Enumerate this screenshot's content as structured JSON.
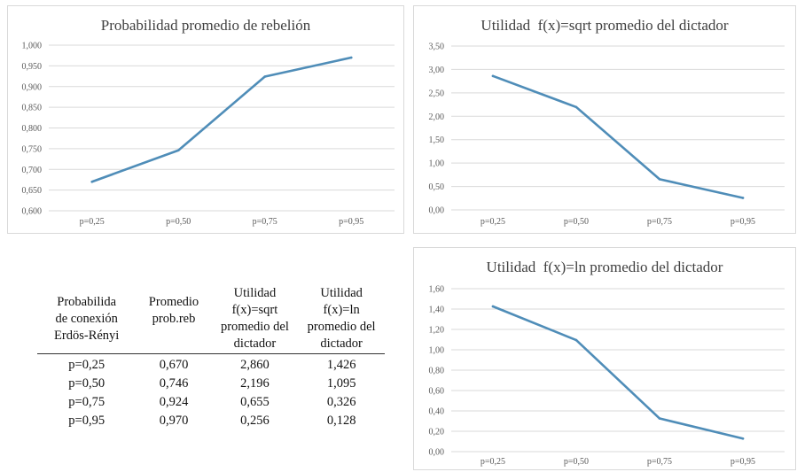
{
  "chart_data": [
    {
      "type": "line",
      "title": "Probabilidad promedio de rebelión",
      "categories": [
        "p=0,25",
        "p=0,50",
        "p=0,75",
        "p=0,95"
      ],
      "series": [
        {
          "values": [
            0.67,
            0.746,
            0.924,
            0.97
          ]
        }
      ],
      "ylim": [
        0.6,
        1.0
      ],
      "yticks": [
        "0,600",
        "0,650",
        "0,700",
        "0,750",
        "0,800",
        "0,850",
        "0,900",
        "0,950",
        "1,000"
      ],
      "grid": true,
      "color": "#4f8db8"
    },
    {
      "type": "line",
      "title": "Utilidad  f(x)=sqrt promedio del dictador",
      "categories": [
        "p=0,25",
        "p=0,50",
        "p=0,75",
        "p=0,95"
      ],
      "series": [
        {
          "values": [
            2.86,
            2.196,
            0.655,
            0.256
          ]
        }
      ],
      "ylim": [
        0,
        3.5
      ],
      "yticks": [
        "0,00",
        "0,50",
        "1,00",
        "1,50",
        "2,00",
        "2,50",
        "3,00",
        "3,50"
      ],
      "grid": true,
      "color": "#4f8db8"
    },
    {
      "type": "line",
      "title": "Utilidad  f(x)=ln promedio del dictador",
      "categories": [
        "p=0,25",
        "p=0,50",
        "p=0,75",
        "p=0,95"
      ],
      "series": [
        {
          "values": [
            1.426,
            1.095,
            0.326,
            0.128
          ]
        }
      ],
      "ylim": [
        0,
        1.6
      ],
      "yticks": [
        "0,00",
        "0,20",
        "0,40",
        "0,60",
        "0,80",
        "1,00",
        "1,20",
        "1,40",
        "1,60"
      ],
      "grid": true,
      "color": "#4f8db8"
    },
    {
      "type": "table",
      "headers": [
        "Probabilida de conexión Erdös-Rényi",
        "Promedio prob.reb",
        "Utilidad f(x)=sqrt promedio del dictador",
        "Utilidad f(x)=ln promedio del dictador"
      ],
      "header_lines": [
        [
          "Probabilida",
          "de conexión",
          "Erdös-Rényi"
        ],
        [
          "Promedio",
          "prob.reb"
        ],
        [
          "Utilidad",
          "f(x)=sqrt",
          "promedio del",
          "dictador"
        ],
        [
          "Utilidad",
          "f(x)=ln",
          "promedio del",
          "dictador"
        ]
      ],
      "rows": [
        [
          "p=0,25",
          "0,670",
          "2,860",
          "1,426"
        ],
        [
          "p=0,50",
          "0,746",
          "2,196",
          "1,095"
        ],
        [
          "p=0,75",
          "0,924",
          "0,655",
          "0,326"
        ],
        [
          "p=0,95",
          "0,970",
          "0,256",
          "0,128"
        ]
      ]
    }
  ]
}
